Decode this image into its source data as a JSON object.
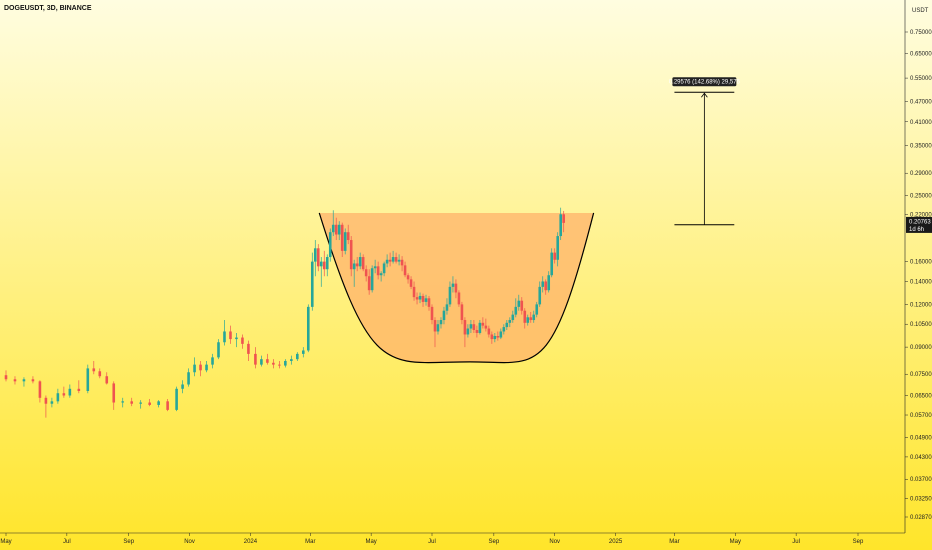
{
  "header": {
    "title": "DOGEUSDT, 3D, BINANCE"
  },
  "currency_label": "USDT",
  "current_price": {
    "value": "0.20763",
    "countdown": "1d 6h"
  },
  "measure_label": "0.29576 (142.68%) 29,576",
  "colors": {
    "bg_top": "#fffde0",
    "bg_bottom": "#ffe52a",
    "up": "#26a69a",
    "down": "#ef5350",
    "cup_fill": "#ffb36b",
    "cup_line": "#000000",
    "axis": "#222222"
  },
  "chart_data": {
    "type": "candlestick",
    "symbol": "DOGEUSDT",
    "interval": "3D",
    "exchange": "BINANCE",
    "y_scale": "log",
    "ylim": [
      0.0265,
      0.8
    ],
    "y_ticks": [
      "0.75000",
      "0.65000",
      "0.55000",
      "0.47000",
      "0.41000",
      "0.35000",
      "0.29000",
      "0.25000",
      "0.22000",
      "0.16000",
      "0.14000",
      "0.12000",
      "0.10500",
      "0.09000",
      "0.07500",
      "0.06500",
      "0.05700",
      "0.04900",
      "0.04300",
      "0.03700",
      "0.03250",
      "0.02870"
    ],
    "y_tick_values": [
      0.75,
      0.65,
      0.55,
      0.47,
      0.41,
      0.35,
      0.29,
      0.25,
      0.22,
      0.16,
      0.14,
      0.12,
      0.105,
      0.09,
      0.075,
      0.065,
      0.057,
      0.049,
      0.043,
      0.037,
      0.0325,
      0.0287
    ],
    "x_ticks": [
      "May",
      "Jul",
      "Sep",
      "Nov",
      "2024",
      "Mar",
      "May",
      "Jul",
      "Sep",
      "Nov",
      "2025",
      "Mar",
      "May",
      "Jul",
      "Sep"
    ],
    "x_tick_dates": [
      "2023-05-01",
      "2023-07-01",
      "2023-09-01",
      "2023-11-01",
      "2024-01-01",
      "2024-03-01",
      "2024-05-01",
      "2024-07-01",
      "2024-09-01",
      "2024-11-01",
      "2025-01-01",
      "2025-03-01",
      "2025-05-01",
      "2025-07-01",
      "2025-09-01"
    ],
    "x_range": [
      "2023-05-01",
      "2025-10-01"
    ],
    "candles": [
      {
        "d": "2023-05-01",
        "o": 0.0745,
        "h": 0.077,
        "l": 0.0715,
        "c": 0.0725
      },
      {
        "d": "2023-05-10",
        "o": 0.0725,
        "h": 0.074,
        "l": 0.07,
        "c": 0.0715
      },
      {
        "d": "2023-05-19",
        "o": 0.0715,
        "h": 0.0735,
        "l": 0.069,
        "c": 0.0725
      },
      {
        "d": "2023-05-28",
        "o": 0.0725,
        "h": 0.074,
        "l": 0.0705,
        "c": 0.0715
      },
      {
        "d": "2023-06-04",
        "o": 0.0715,
        "h": 0.072,
        "l": 0.062,
        "c": 0.064
      },
      {
        "d": "2023-06-10",
        "o": 0.064,
        "h": 0.065,
        "l": 0.056,
        "c": 0.0615
      },
      {
        "d": "2023-06-16",
        "o": 0.0615,
        "h": 0.064,
        "l": 0.06,
        "c": 0.0625
      },
      {
        "d": "2023-06-22",
        "o": 0.0625,
        "h": 0.068,
        "l": 0.0615,
        "c": 0.066
      },
      {
        "d": "2023-06-28",
        "o": 0.066,
        "h": 0.069,
        "l": 0.064,
        "c": 0.065
      },
      {
        "d": "2023-07-04",
        "o": 0.065,
        "h": 0.07,
        "l": 0.064,
        "c": 0.068
      },
      {
        "d": "2023-07-13",
        "o": 0.068,
        "h": 0.072,
        "l": 0.066,
        "c": 0.067
      },
      {
        "d": "2023-07-22",
        "o": 0.067,
        "h": 0.08,
        "l": 0.066,
        "c": 0.078
      },
      {
        "d": "2023-07-28",
        "o": 0.078,
        "h": 0.082,
        "l": 0.075,
        "c": 0.0765
      },
      {
        "d": "2023-08-03",
        "o": 0.0765,
        "h": 0.078,
        "l": 0.073,
        "c": 0.074
      },
      {
        "d": "2023-08-10",
        "o": 0.074,
        "h": 0.076,
        "l": 0.07,
        "c": 0.0705
      },
      {
        "d": "2023-08-17",
        "o": 0.0705,
        "h": 0.0715,
        "l": 0.059,
        "c": 0.062
      },
      {
        "d": "2023-08-26",
        "o": 0.062,
        "h": 0.064,
        "l": 0.06,
        "c": 0.0625
      },
      {
        "d": "2023-09-04",
        "o": 0.0625,
        "h": 0.064,
        "l": 0.0605,
        "c": 0.0615
      },
      {
        "d": "2023-09-13",
        "o": 0.0615,
        "h": 0.063,
        "l": 0.0595,
        "c": 0.062
      },
      {
        "d": "2023-09-22",
        "o": 0.062,
        "h": 0.0635,
        "l": 0.0605,
        "c": 0.061
      },
      {
        "d": "2023-10-01",
        "o": 0.061,
        "h": 0.063,
        "l": 0.06,
        "c": 0.0625
      },
      {
        "d": "2023-10-10",
        "o": 0.0625,
        "h": 0.0635,
        "l": 0.0585,
        "c": 0.059
      },
      {
        "d": "2023-10-19",
        "o": 0.059,
        "h": 0.069,
        "l": 0.0585,
        "c": 0.068
      },
      {
        "d": "2023-10-25",
        "o": 0.068,
        "h": 0.072,
        "l": 0.066,
        "c": 0.07
      },
      {
        "d": "2023-10-31",
        "o": 0.07,
        "h": 0.078,
        "l": 0.069,
        "c": 0.076
      },
      {
        "d": "2023-11-06",
        "o": 0.076,
        "h": 0.084,
        "l": 0.074,
        "c": 0.08
      },
      {
        "d": "2023-11-12",
        "o": 0.08,
        "h": 0.082,
        "l": 0.074,
        "c": 0.077
      },
      {
        "d": "2023-11-18",
        "o": 0.077,
        "h": 0.082,
        "l": 0.076,
        "c": 0.08
      },
      {
        "d": "2023-11-24",
        "o": 0.08,
        "h": 0.086,
        "l": 0.078,
        "c": 0.084
      },
      {
        "d": "2023-11-30",
        "o": 0.084,
        "h": 0.095,
        "l": 0.083,
        "c": 0.093
      },
      {
        "d": "2023-12-06",
        "o": 0.093,
        "h": 0.108,
        "l": 0.091,
        "c": 0.1
      },
      {
        "d": "2023-12-12",
        "o": 0.1,
        "h": 0.104,
        "l": 0.092,
        "c": 0.095
      },
      {
        "d": "2023-12-18",
        "o": 0.095,
        "h": 0.099,
        "l": 0.09,
        "c": 0.096
      },
      {
        "d": "2023-12-24",
        "o": 0.096,
        "h": 0.098,
        "l": 0.089,
        "c": 0.092
      },
      {
        "d": "2023-12-30",
        "o": 0.092,
        "h": 0.094,
        "l": 0.082,
        "c": 0.086
      },
      {
        "d": "2024-01-06",
        "o": 0.086,
        "h": 0.09,
        "l": 0.078,
        "c": 0.08
      },
      {
        "d": "2024-01-12",
        "o": 0.08,
        "h": 0.085,
        "l": 0.079,
        "c": 0.083
      },
      {
        "d": "2024-01-18",
        "o": 0.083,
        "h": 0.086,
        "l": 0.08,
        "c": 0.081
      },
      {
        "d": "2024-01-24",
        "o": 0.081,
        "h": 0.083,
        "l": 0.078,
        "c": 0.08
      },
      {
        "d": "2024-01-30",
        "o": 0.08,
        "h": 0.082,
        "l": 0.078,
        "c": 0.0795
      },
      {
        "d": "2024-02-05",
        "o": 0.0795,
        "h": 0.083,
        "l": 0.0785,
        "c": 0.082
      },
      {
        "d": "2024-02-11",
        "o": 0.082,
        "h": 0.085,
        "l": 0.08,
        "c": 0.083
      },
      {
        "d": "2024-02-17",
        "o": 0.083,
        "h": 0.087,
        "l": 0.082,
        "c": 0.086
      },
      {
        "d": "2024-02-23",
        "o": 0.086,
        "h": 0.09,
        "l": 0.084,
        "c": 0.088
      },
      {
        "d": "2024-02-28",
        "o": 0.088,
        "h": 0.12,
        "l": 0.087,
        "c": 0.118
      },
      {
        "d": "2024-03-03",
        "o": 0.118,
        "h": 0.17,
        "l": 0.115,
        "c": 0.16
      },
      {
        "d": "2024-03-06",
        "o": 0.16,
        "h": 0.185,
        "l": 0.145,
        "c": 0.175
      },
      {
        "d": "2024-03-09",
        "o": 0.175,
        "h": 0.18,
        "l": 0.15,
        "c": 0.155
      },
      {
        "d": "2024-03-12",
        "o": 0.155,
        "h": 0.165,
        "l": 0.135,
        "c": 0.16
      },
      {
        "d": "2024-03-15",
        "o": 0.16,
        "h": 0.172,
        "l": 0.145,
        "c": 0.152
      },
      {
        "d": "2024-03-18",
        "o": 0.152,
        "h": 0.168,
        "l": 0.145,
        "c": 0.165
      },
      {
        "d": "2024-03-21",
        "o": 0.165,
        "h": 0.2,
        "l": 0.16,
        "c": 0.195
      },
      {
        "d": "2024-03-24",
        "o": 0.195,
        "h": 0.226,
        "l": 0.19,
        "c": 0.205
      },
      {
        "d": "2024-03-27",
        "o": 0.205,
        "h": 0.215,
        "l": 0.185,
        "c": 0.192
      },
      {
        "d": "2024-03-30",
        "o": 0.192,
        "h": 0.21,
        "l": 0.185,
        "c": 0.205
      },
      {
        "d": "2024-04-02",
        "o": 0.205,
        "h": 0.208,
        "l": 0.165,
        "c": 0.172
      },
      {
        "d": "2024-04-05",
        "o": 0.172,
        "h": 0.2,
        "l": 0.168,
        "c": 0.195
      },
      {
        "d": "2024-04-08",
        "o": 0.195,
        "h": 0.205,
        "l": 0.18,
        "c": 0.185
      },
      {
        "d": "2024-04-11",
        "o": 0.185,
        "h": 0.19,
        "l": 0.145,
        "c": 0.152
      },
      {
        "d": "2024-04-14",
        "o": 0.152,
        "h": 0.162,
        "l": 0.135,
        "c": 0.158
      },
      {
        "d": "2024-04-17",
        "o": 0.158,
        "h": 0.165,
        "l": 0.15,
        "c": 0.155
      },
      {
        "d": "2024-04-20",
        "o": 0.155,
        "h": 0.17,
        "l": 0.152,
        "c": 0.165
      },
      {
        "d": "2024-04-23",
        "o": 0.165,
        "h": 0.168,
        "l": 0.15,
        "c": 0.152
      },
      {
        "d": "2024-04-26",
        "o": 0.152,
        "h": 0.156,
        "l": 0.14,
        "c": 0.145
      },
      {
        "d": "2024-04-29",
        "o": 0.145,
        "h": 0.152,
        "l": 0.128,
        "c": 0.132
      },
      {
        "d": "2024-05-02",
        "o": 0.132,
        "h": 0.156,
        "l": 0.13,
        "c": 0.153
      },
      {
        "d": "2024-05-05",
        "o": 0.153,
        "h": 0.162,
        "l": 0.148,
        "c": 0.155
      },
      {
        "d": "2024-05-08",
        "o": 0.155,
        "h": 0.16,
        "l": 0.142,
        "c": 0.146
      },
      {
        "d": "2024-05-11",
        "o": 0.146,
        "h": 0.15,
        "l": 0.14,
        "c": 0.148
      },
      {
        "d": "2024-05-14",
        "o": 0.148,
        "h": 0.16,
        "l": 0.145,
        "c": 0.158
      },
      {
        "d": "2024-05-17",
        "o": 0.158,
        "h": 0.168,
        "l": 0.154,
        "c": 0.162
      },
      {
        "d": "2024-05-20",
        "o": 0.162,
        "h": 0.17,
        "l": 0.155,
        "c": 0.16
      },
      {
        "d": "2024-05-23",
        "o": 0.16,
        "h": 0.172,
        "l": 0.158,
        "c": 0.165
      },
      {
        "d": "2024-05-26",
        "o": 0.165,
        "h": 0.17,
        "l": 0.158,
        "c": 0.16
      },
      {
        "d": "2024-05-29",
        "o": 0.16,
        "h": 0.168,
        "l": 0.156,
        "c": 0.162
      },
      {
        "d": "2024-06-01",
        "o": 0.162,
        "h": 0.166,
        "l": 0.15,
        "c": 0.156
      },
      {
        "d": "2024-06-04",
        "o": 0.156,
        "h": 0.16,
        "l": 0.144,
        "c": 0.146
      },
      {
        "d": "2024-06-07",
        "o": 0.146,
        "h": 0.148,
        "l": 0.138,
        "c": 0.142
      },
      {
        "d": "2024-06-10",
        "o": 0.142,
        "h": 0.145,
        "l": 0.133,
        "c": 0.135
      },
      {
        "d": "2024-06-13",
        "o": 0.135,
        "h": 0.14,
        "l": 0.123,
        "c": 0.126
      },
      {
        "d": "2024-06-16",
        "o": 0.126,
        "h": 0.13,
        "l": 0.12,
        "c": 0.124
      },
      {
        "d": "2024-06-19",
        "o": 0.124,
        "h": 0.13,
        "l": 0.121,
        "c": 0.127
      },
      {
        "d": "2024-06-22",
        "o": 0.127,
        "h": 0.129,
        "l": 0.118,
        "c": 0.122
      },
      {
        "d": "2024-06-25",
        "o": 0.122,
        "h": 0.128,
        "l": 0.119,
        "c": 0.125
      },
      {
        "d": "2024-06-28",
        "o": 0.125,
        "h": 0.127,
        "l": 0.115,
        "c": 0.118
      },
      {
        "d": "2024-07-01",
        "o": 0.118,
        "h": 0.12,
        "l": 0.105,
        "c": 0.108
      },
      {
        "d": "2024-07-04",
        "o": 0.108,
        "h": 0.11,
        "l": 0.09,
        "c": 0.1
      },
      {
        "d": "2024-07-07",
        "o": 0.1,
        "h": 0.108,
        "l": 0.098,
        "c": 0.105
      },
      {
        "d": "2024-07-10",
        "o": 0.105,
        "h": 0.11,
        "l": 0.102,
        "c": 0.108
      },
      {
        "d": "2024-07-13",
        "o": 0.108,
        "h": 0.118,
        "l": 0.105,
        "c": 0.115
      },
      {
        "d": "2024-07-16",
        "o": 0.115,
        "h": 0.125,
        "l": 0.112,
        "c": 0.12
      },
      {
        "d": "2024-07-19",
        "o": 0.12,
        "h": 0.14,
        "l": 0.118,
        "c": 0.135
      },
      {
        "d": "2024-07-22",
        "o": 0.135,
        "h": 0.145,
        "l": 0.13,
        "c": 0.138
      },
      {
        "d": "2024-07-25",
        "o": 0.138,
        "h": 0.142,
        "l": 0.125,
        "c": 0.13
      },
      {
        "d": "2024-07-28",
        "o": 0.13,
        "h": 0.132,
        "l": 0.118,
        "c": 0.12
      },
      {
        "d": "2024-07-31",
        "o": 0.12,
        "h": 0.122,
        "l": 0.105,
        "c": 0.108
      },
      {
        "d": "2024-08-03",
        "o": 0.108,
        "h": 0.11,
        "l": 0.09,
        "c": 0.098
      },
      {
        "d": "2024-08-06",
        "o": 0.098,
        "h": 0.105,
        "l": 0.096,
        "c": 0.102
      },
      {
        "d": "2024-08-09",
        "o": 0.102,
        "h": 0.108,
        "l": 0.099,
        "c": 0.105
      },
      {
        "d": "2024-08-12",
        "o": 0.105,
        "h": 0.108,
        "l": 0.099,
        "c": 0.101
      },
      {
        "d": "2024-08-15",
        "o": 0.101,
        "h": 0.104,
        "l": 0.096,
        "c": 0.099
      },
      {
        "d": "2024-08-18",
        "o": 0.099,
        "h": 0.108,
        "l": 0.098,
        "c": 0.106
      },
      {
        "d": "2024-08-21",
        "o": 0.106,
        "h": 0.11,
        "l": 0.102,
        "c": 0.104
      },
      {
        "d": "2024-08-24",
        "o": 0.104,
        "h": 0.109,
        "l": 0.1,
        "c": 0.102
      },
      {
        "d": "2024-08-27",
        "o": 0.102,
        "h": 0.104,
        "l": 0.096,
        "c": 0.098
      },
      {
        "d": "2024-08-30",
        "o": 0.098,
        "h": 0.1,
        "l": 0.092,
        "c": 0.095
      },
      {
        "d": "2024-09-02",
        "o": 0.095,
        "h": 0.099,
        "l": 0.093,
        "c": 0.097
      },
      {
        "d": "2024-09-05",
        "o": 0.097,
        "h": 0.1,
        "l": 0.094,
        "c": 0.096
      },
      {
        "d": "2024-09-08",
        "o": 0.096,
        "h": 0.102,
        "l": 0.095,
        "c": 0.1
      },
      {
        "d": "2024-09-11",
        "o": 0.1,
        "h": 0.105,
        "l": 0.098,
        "c": 0.103
      },
      {
        "d": "2024-09-14",
        "o": 0.103,
        "h": 0.108,
        "l": 0.101,
        "c": 0.106
      },
      {
        "d": "2024-09-17",
        "o": 0.106,
        "h": 0.11,
        "l": 0.103,
        "c": 0.108
      },
      {
        "d": "2024-09-20",
        "o": 0.108,
        "h": 0.115,
        "l": 0.106,
        "c": 0.112
      },
      {
        "d": "2024-09-23",
        "o": 0.112,
        "h": 0.125,
        "l": 0.11,
        "c": 0.118
      },
      {
        "d": "2024-09-26",
        "o": 0.118,
        "h": 0.128,
        "l": 0.115,
        "c": 0.123
      },
      {
        "d": "2024-09-29",
        "o": 0.123,
        "h": 0.126,
        "l": 0.112,
        "c": 0.115
      },
      {
        "d": "2024-10-02",
        "o": 0.115,
        "h": 0.117,
        "l": 0.102,
        "c": 0.106
      },
      {
        "d": "2024-10-05",
        "o": 0.106,
        "h": 0.112,
        "l": 0.104,
        "c": 0.11
      },
      {
        "d": "2024-10-08",
        "o": 0.11,
        "h": 0.114,
        "l": 0.106,
        "c": 0.108
      },
      {
        "d": "2024-10-11",
        "o": 0.108,
        "h": 0.115,
        "l": 0.106,
        "c": 0.112
      },
      {
        "d": "2024-10-14",
        "o": 0.112,
        "h": 0.122,
        "l": 0.11,
        "c": 0.12
      },
      {
        "d": "2024-10-17",
        "o": 0.12,
        "h": 0.14,
        "l": 0.118,
        "c": 0.135
      },
      {
        "d": "2024-10-20",
        "o": 0.135,
        "h": 0.145,
        "l": 0.13,
        "c": 0.14
      },
      {
        "d": "2024-10-23",
        "o": 0.14,
        "h": 0.142,
        "l": 0.128,
        "c": 0.132
      },
      {
        "d": "2024-10-26",
        "o": 0.132,
        "h": 0.15,
        "l": 0.13,
        "c": 0.146
      },
      {
        "d": "2024-10-29",
        "o": 0.146,
        "h": 0.175,
        "l": 0.144,
        "c": 0.17
      },
      {
        "d": "2024-11-01",
        "o": 0.17,
        "h": 0.175,
        "l": 0.158,
        "c": 0.162
      },
      {
        "d": "2024-11-04",
        "o": 0.162,
        "h": 0.195,
        "l": 0.155,
        "c": 0.19
      },
      {
        "d": "2024-11-07",
        "o": 0.19,
        "h": 0.23,
        "l": 0.185,
        "c": 0.22
      },
      {
        "d": "2024-11-10",
        "o": 0.22,
        "h": 0.225,
        "l": 0.195,
        "c": 0.2076
      }
    ],
    "pattern": {
      "name": "cup",
      "rim_price": 0.222,
      "rim_left_date": "2024-03-10",
      "rim_right_date": "2024-12-10",
      "bottom_price": 0.0815,
      "bottom_date": "2024-08-08"
    },
    "measure": {
      "date_start": "2025-03-01",
      "date_end": "2025-04-30",
      "from_price": 0.205,
      "to_price": 0.5
    }
  }
}
